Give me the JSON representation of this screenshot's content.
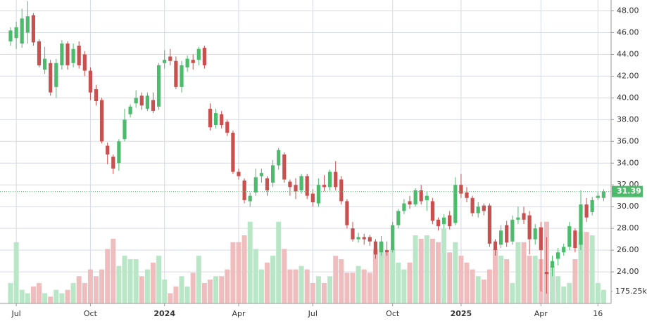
{
  "chart_data": {
    "type": "candlestick",
    "categories": [
      null,
      "Jul",
      null,
      null,
      null,
      null,
      null,
      null,
      null,
      null,
      null,
      null,
      null,
      null,
      "Oct",
      null,
      null,
      null,
      null,
      null,
      null,
      null,
      null,
      null,
      null,
      null,
      null,
      "2024",
      null,
      null,
      null,
      null,
      null,
      null,
      null,
      null,
      null,
      null,
      null,
      null,
      "Apr",
      null,
      null,
      null,
      null,
      null,
      null,
      null,
      null,
      null,
      null,
      null,
      null,
      "Jul",
      null,
      null,
      null,
      null,
      null,
      null,
      null,
      null,
      null,
      null,
      null,
      null,
      null,
      "Oct",
      null,
      null,
      null,
      null,
      null,
      null,
      null,
      null,
      null,
      null,
      null,
      "2025",
      null,
      null,
      null,
      null,
      null,
      null,
      null,
      null,
      null,
      null,
      null,
      null,
      null,
      "Apr",
      null,
      null,
      null,
      null,
      null,
      null,
      null,
      null,
      null,
      "16",
      null
    ],
    "open": [
      45.2,
      45.5,
      45,
      46,
      47.6,
      45.2,
      42.6,
      43.2,
      41,
      43,
      45,
      43.2,
      44.8,
      44,
      42.5,
      40.8,
      39.8,
      35.6,
      34.6,
      34,
      36.2,
      38.5,
      39.5,
      40.2,
      39,
      39.8,
      39.2,
      43.2,
      43.8,
      43.4,
      41,
      42.8,
      43.5,
      43.5,
      44.6,
      39,
      37.5,
      38.5,
      37.8,
      36.8,
      33.2,
      32.4,
      30.5,
      31.3,
      32.8,
      32.6,
      32.2,
      33.8,
      34.8,
      32.3,
      32,
      31.5,
      32.8,
      31.2,
      30.3,
      32,
      31.8,
      33.2,
      32.5,
      30.5,
      28,
      27,
      27.2,
      27.2,
      26.8,
      25.8,
      26,
      26,
      28.3,
      29.6,
      30.5,
      30.2,
      31.5,
      30.6,
      30.5,
      28.8,
      28.4,
      29.2,
      28.5,
      32,
      31.3,
      30.8,
      29.4,
      30.1,
      30.1,
      26.8,
      26.5,
      28.3,
      26.8,
      28.8,
      29.4,
      29.2,
      27,
      28.1,
      24,
      24.4,
      25.2,
      25.8,
      26.3,
      27.8,
      26.5,
      30.2,
      29.5,
      30.8,
      30.8
    ],
    "high": [
      46.5,
      47,
      48.2,
      48.9,
      47.8,
      45.4,
      44.7,
      43.5,
      43.6,
      45.3,
      45.2,
      45,
      45.2,
      44.3,
      42.8,
      41.2,
      40,
      35.9,
      34.8,
      36.2,
      39,
      39.4,
      40.7,
      40.5,
      40.5,
      40.5,
      43.2,
      44.4,
      44.5,
      43.8,
      43.4,
      43.9,
      44,
      44.7,
      44.8,
      39.5,
      39,
      38.8,
      38,
      37,
      33.5,
      32.6,
      31.3,
      33.5,
      33.5,
      32.8,
      34.3,
      35.4,
      35,
      32.5,
      32.6,
      33,
      33,
      31.6,
      32.6,
      32.9,
      33.4,
      34.2,
      32.8,
      30.7,
      28.6,
      27.6,
      27.5,
      27.4,
      27,
      27.3,
      26.8,
      28.6,
      29.8,
      30.7,
      31,
      31.7,
      32,
      31.4,
      30.8,
      29,
      29.3,
      29.6,
      32.7,
      33,
      31.8,
      31,
      30.4,
      30.3,
      30.3,
      27,
      28.3,
      28.7,
      29.2,
      30,
      30,
      29.6,
      28.4,
      28.6,
      27.2,
      25.5,
      26.2,
      26.6,
      28.6,
      28,
      31.5,
      30.8,
      30.9,
      31.4,
      31.6
    ],
    "low": [
      44.8,
      44.5,
      44.6,
      45,
      44.8,
      42.8,
      42.2,
      40.2,
      40,
      42.6,
      42.6,
      42.8,
      42.7,
      42,
      39.8,
      39.3,
      35.8,
      33.9,
      33,
      33.3,
      36,
      38.2,
      39.1,
      38.9,
      38.8,
      38.6,
      38.9,
      42.7,
      43,
      40.8,
      40.5,
      42.4,
      42.6,
      43,
      42.7,
      37,
      37.2,
      37.2,
      36.5,
      33,
      32.5,
      30.3,
      30,
      31,
      32.2,
      31,
      31.8,
      33.4,
      32.2,
      31,
      30.7,
      31.2,
      30.7,
      30,
      30,
      31.4,
      31.5,
      31.5,
      30.2,
      28,
      26.8,
      26.7,
      26.5,
      26.4,
      25.2,
      25.5,
      25.5,
      25.8,
      28,
      29.3,
      29.8,
      30,
      30.2,
      29.6,
      28.4,
      27.8,
      28,
      27.9,
      28.3,
      30.8,
      30.4,
      29.1,
      29,
      29.2,
      26.3,
      25.5,
      26.2,
      26.3,
      26.5,
      28.4,
      28.4,
      25.6,
      26.5,
      22.2,
      22,
      23.6,
      24.6,
      25.5,
      26,
      25.8,
      26,
      28.6,
      29.2,
      30.6,
      30.5
    ],
    "close": [
      46.2,
      46.5,
      47.3,
      47.5,
      45.1,
      43,
      43.6,
      40.5,
      43.2,
      45,
      43,
      44.5,
      43,
      42.5,
      40.5,
      39.7,
      36,
      34.8,
      33.5,
      36,
      38,
      39.2,
      40,
      39.3,
      40.2,
      38.8,
      43,
      43.5,
      43.4,
      41,
      43,
      43.6,
      43.2,
      44.5,
      43,
      37.3,
      38.6,
      37.5,
      36.8,
      33.2,
      32.8,
      30.6,
      31,
      32.7,
      33.1,
      31.5,
      33.8,
      35.2,
      32.5,
      31.8,
      31.4,
      32.8,
      31,
      30.4,
      32,
      31.8,
      33.2,
      31.8,
      30.5,
      28.3,
      27,
      27.2,
      27,
      26.8,
      25.6,
      26.8,
      25.8,
      28.3,
      29.6,
      30.3,
      30.2,
      31.5,
      30.5,
      31,
      28.7,
      28.2,
      29,
      28.2,
      32,
      31.2,
      30.8,
      29.4,
      30,
      29.6,
      26.6,
      26,
      27.8,
      26.7,
      28.8,
      29,
      28.8,
      27,
      28,
      26,
      23.8,
      25,
      25.8,
      26.3,
      28.2,
      26.2,
      30.2,
      29,
      30.6,
      31,
      31.39
    ],
    "volume": [
      300000,
      900000,
      200000,
      150000,
      250000,
      300000,
      150000,
      100000,
      200000,
      150000,
      200000,
      300000,
      400000,
      300000,
      500000,
      400000,
      500000,
      800000,
      950000,
      550000,
      700000,
      650000,
      650000,
      400000,
      500000,
      600000,
      700000,
      350000,
      150000,
      250000,
      400000,
      250000,
      450000,
      700000,
      300000,
      350000,
      400000,
      400000,
      500000,
      900000,
      900000,
      1000000,
      1200000,
      800000,
      500000,
      600000,
      700000,
      1200000,
      800000,
      500000,
      500000,
      550000,
      500000,
      300000,
      400000,
      300000,
      400000,
      700000,
      650000,
      450000,
      450000,
      550000,
      500000,
      450000,
      800000,
      900000,
      750000,
      800000,
      600000,
      500000,
      600000,
      1000000,
      950000,
      1000000,
      950000,
      900000,
      1100000,
      750000,
      900000,
      700000,
      600000,
      500000,
      400000,
      350000,
      500000,
      800000,
      700000,
      650000,
      300000,
      900000,
      900000,
      700000,
      700000,
      650000,
      1200000,
      550000,
      400000,
      250000,
      300000,
      650000,
      1050000,
      1050000,
      1000000,
      300000,
      200000
    ],
    "ylim": [
      21.1,
      49.0
    ],
    "yticks": [
      {
        "value": 24,
        "label": "24.00"
      },
      {
        "value": 26,
        "label": "26.00"
      },
      {
        "value": 28,
        "label": "28.00"
      },
      {
        "value": 30,
        "label": "30.00"
      },
      {
        "value": 32,
        "label": "32.00"
      },
      {
        "value": 34,
        "label": "34.00"
      },
      {
        "value": 36,
        "label": "36.00"
      },
      {
        "value": 38,
        "label": "38.00"
      },
      {
        "value": 40,
        "label": "40.00"
      },
      {
        "value": 42,
        "label": "42.00"
      },
      {
        "value": 44,
        "label": "44.00"
      },
      {
        "value": 46,
        "label": "46.00"
      },
      {
        "value": 48,
        "label": "48.00"
      }
    ],
    "volume_ylim": [
      0,
      4456000
    ],
    "volume_ticks": [
      {
        "value": 175250,
        "label": "175.25k"
      }
    ],
    "up_color": "#4cbb6c",
    "down_color": "#c8504f",
    "volume_up_color": "#b9e6c6",
    "volume_down_color": "#efbdbd",
    "grid": true
  }
}
